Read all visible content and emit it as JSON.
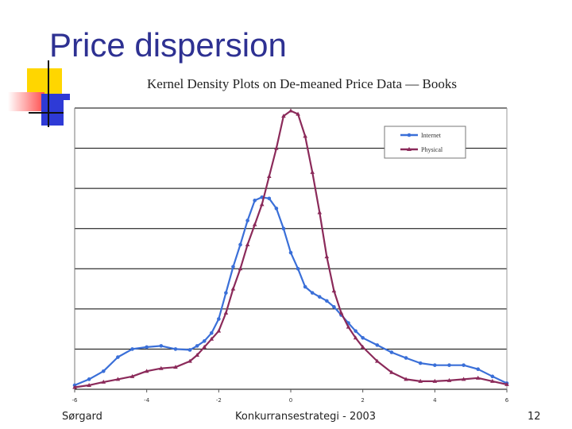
{
  "slide": {
    "title": "Price dispersion",
    "footer_left": "Sørgard",
    "footer_center": "Konkurransestrategi - 2003",
    "page_number": "12"
  },
  "colors": {
    "title": "#2e3192",
    "internet": "#3a6fd8",
    "physical": "#8b2a5a",
    "deco_yellow": "#ffd600",
    "deco_red": "#ff4d4d",
    "deco_blue": "#2e3ad6"
  },
  "chart_data": {
    "type": "line",
    "title": "Kernel Density Plots on De-meaned Price Data — Books",
    "xlabel": "",
    "ylabel": "",
    "xlim": [
      -6,
      6
    ],
    "ylim": [
      0,
      7
    ],
    "x_ticks": [
      "-6",
      "-4",
      "-2",
      "0",
      "2",
      "4",
      "6"
    ],
    "grid": true,
    "legend_position": "top-right",
    "series": [
      {
        "name": "Internet",
        "color": "#3a6fd8",
        "marker": "circle",
        "x": [
          -6,
          -5.6,
          -5.2,
          -4.8,
          -4.4,
          -4.0,
          -3.6,
          -3.2,
          -2.8,
          -2.6,
          -2.4,
          -2.2,
          -2.0,
          -1.8,
          -1.6,
          -1.4,
          -1.2,
          -1.0,
          -0.8,
          -0.6,
          -0.4,
          -0.2,
          0.0,
          0.2,
          0.4,
          0.6,
          0.8,
          1.0,
          1.2,
          1.4,
          1.6,
          1.8,
          2.0,
          2.4,
          2.8,
          3.2,
          3.6,
          4.0,
          4.4,
          4.8,
          5.2,
          5.6,
          6.0
        ],
        "y": [
          0.1,
          0.25,
          0.45,
          0.8,
          1.0,
          1.05,
          1.08,
          1.0,
          0.98,
          1.08,
          1.2,
          1.4,
          1.75,
          2.4,
          3.05,
          3.6,
          4.2,
          4.7,
          4.78,
          4.75,
          4.5,
          4.0,
          3.4,
          3.0,
          2.55,
          2.4,
          2.3,
          2.2,
          2.05,
          1.85,
          1.65,
          1.45,
          1.28,
          1.1,
          0.92,
          0.78,
          0.65,
          0.6,
          0.6,
          0.6,
          0.5,
          0.32,
          0.15
        ]
      },
      {
        "name": "Physical",
        "color": "#8b2a5a",
        "marker": "triangle",
        "x": [
          -6,
          -5.6,
          -5.2,
          -4.8,
          -4.4,
          -4.0,
          -3.6,
          -3.2,
          -2.8,
          -2.6,
          -2.4,
          -2.2,
          -2.0,
          -1.8,
          -1.6,
          -1.4,
          -1.2,
          -1.0,
          -0.8,
          -0.6,
          -0.4,
          -0.2,
          0.0,
          0.2,
          0.4,
          0.6,
          0.8,
          1.0,
          1.2,
          1.4,
          1.6,
          1.8,
          2.0,
          2.4,
          2.8,
          3.2,
          3.6,
          4.0,
          4.4,
          4.8,
          5.2,
          5.6,
          6.0
        ],
        "y": [
          0.05,
          0.1,
          0.18,
          0.25,
          0.32,
          0.45,
          0.52,
          0.55,
          0.7,
          0.85,
          1.05,
          1.25,
          1.45,
          1.9,
          2.5,
          3.0,
          3.6,
          4.1,
          4.6,
          5.3,
          6.0,
          6.8,
          6.93,
          6.85,
          6.3,
          5.4,
          4.4,
          3.3,
          2.45,
          1.9,
          1.55,
          1.28,
          1.05,
          0.7,
          0.42,
          0.25,
          0.2,
          0.2,
          0.22,
          0.25,
          0.28,
          0.2,
          0.12
        ]
      }
    ]
  }
}
